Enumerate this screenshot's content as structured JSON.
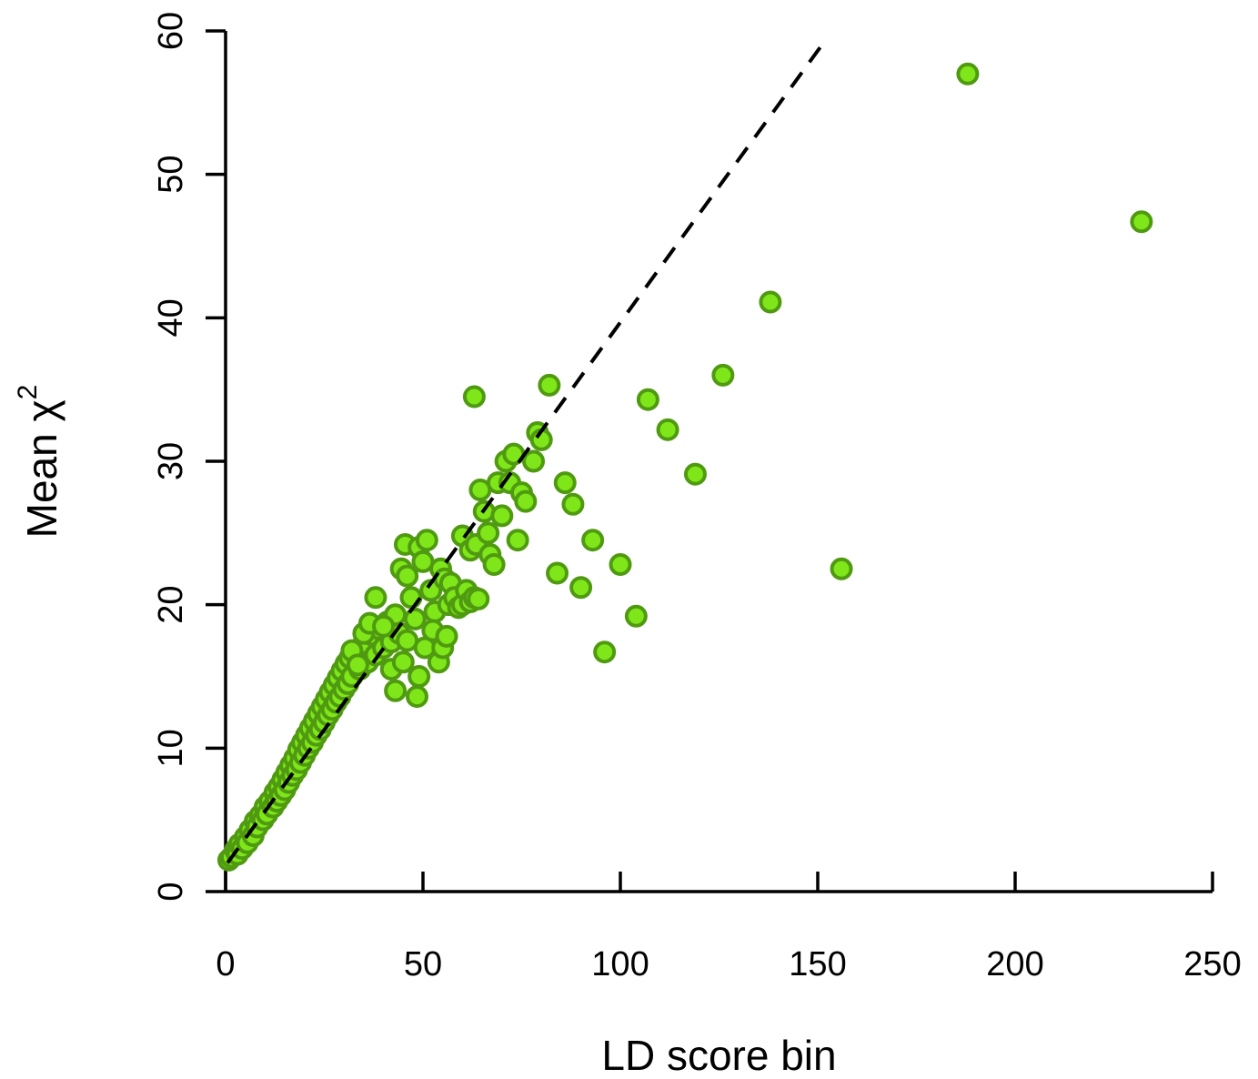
{
  "chart_data": {
    "type": "scatter",
    "title": "",
    "xlabel": "LD score bin",
    "ylabel_main": "Mean χ",
    "ylabel_superscript": "2",
    "xlim": [
      0,
      250
    ],
    "ylim": [
      0,
      60
    ],
    "xticks": [
      0,
      50,
      100,
      150,
      200,
      250
    ],
    "yticks": [
      0,
      10,
      20,
      30,
      40,
      50,
      60
    ],
    "xtick_labels": [
      "0",
      "50",
      "100",
      "150",
      "200",
      "250"
    ],
    "ytick_labels": [
      "0",
      "10",
      "20",
      "30",
      "40",
      "50",
      "60"
    ],
    "grid": false,
    "legend": "none",
    "point_fill": "#7fe61a",
    "point_stroke": "#4f9a10",
    "reference_line": {
      "style": "dashed",
      "color": "#000000",
      "x": [
        0.5,
        151
      ],
      "y": [
        2.0,
        59.0
      ]
    },
    "series": [
      {
        "values": [
          [
            0.8,
            2.2
          ],
          [
            1.5,
            2.4
          ],
          [
            2.5,
            2.9
          ],
          [
            3.0,
            2.6
          ],
          [
            3.5,
            3.3
          ],
          [
            4.2,
            3.0
          ],
          [
            5.0,
            3.8
          ],
          [
            5.5,
            3.4
          ],
          [
            6.2,
            4.3
          ],
          [
            7.0,
            3.9
          ],
          [
            7.5,
            4.9
          ],
          [
            8.0,
            4.5
          ],
          [
            8.8,
            5.3
          ],
          [
            9.5,
            5.0
          ],
          [
            10.0,
            5.9
          ],
          [
            10.5,
            5.4
          ],
          [
            11.2,
            6.3
          ],
          [
            12.0,
            5.9
          ],
          [
            12.5,
            6.9
          ],
          [
            13.0,
            6.3
          ],
          [
            13.5,
            7.3
          ],
          [
            14.0,
            6.7
          ],
          [
            14.5,
            7.8
          ],
          [
            15.0,
            7.1
          ],
          [
            15.5,
            8.3
          ],
          [
            16.0,
            7.6
          ],
          [
            16.5,
            8.8
          ],
          [
            17.0,
            8.1
          ],
          [
            17.5,
            9.3
          ],
          [
            18.0,
            8.5
          ],
          [
            18.5,
            9.9
          ],
          [
            19.0,
            9.0
          ],
          [
            19.5,
            10.4
          ],
          [
            20.0,
            9.5
          ],
          [
            20.5,
            10.9
          ],
          [
            21.0,
            10.0
          ],
          [
            21.5,
            11.4
          ],
          [
            22.0,
            10.4
          ],
          [
            22.5,
            11.9
          ],
          [
            23.0,
            10.9
          ],
          [
            23.5,
            12.4
          ],
          [
            24.0,
            11.3
          ],
          [
            24.5,
            12.9
          ],
          [
            25.0,
            11.8
          ],
          [
            25.5,
            13.4
          ],
          [
            26.0,
            12.3
          ],
          [
            26.5,
            13.9
          ],
          [
            27.0,
            12.7
          ],
          [
            27.5,
            14.4
          ],
          [
            28.0,
            13.2
          ],
          [
            28.5,
            14.9
          ],
          [
            29.0,
            13.6
          ],
          [
            29.5,
            15.4
          ],
          [
            30.0,
            14.1
          ],
          [
            30.5,
            15.9
          ],
          [
            31.0,
            14.5
          ],
          [
            31.5,
            16.3
          ],
          [
            32.0,
            15.0
          ],
          [
            33.0,
            16.8
          ],
          [
            34.0,
            15.5
          ],
          [
            35.0,
            17.3
          ],
          [
            36.0,
            16.0
          ],
          [
            37.0,
            17.9
          ],
          [
            38.0,
            16.5
          ],
          [
            39.0,
            18.3
          ],
          [
            40.0,
            17.0
          ],
          [
            41.0,
            18.8
          ],
          [
            42.0,
            17.4
          ],
          [
            43.0,
            19.3
          ],
          [
            44.0,
            18.0
          ],
          [
            32.0,
            16.8
          ],
          [
            33.5,
            15.8
          ],
          [
            35.0,
            18.0
          ],
          [
            36.5,
            18.7
          ],
          [
            38.0,
            20.5
          ],
          [
            40.0,
            18.5
          ],
          [
            42.0,
            15.5
          ],
          [
            43.0,
            14.0
          ],
          [
            45.0,
            16.0
          ],
          [
            46.0,
            17.5
          ],
          [
            44.5,
            22.5
          ],
          [
            45.5,
            24.2
          ],
          [
            46.0,
            22.0
          ],
          [
            47.0,
            20.5
          ],
          [
            48.0,
            19.0
          ],
          [
            49.0,
            24.0
          ],
          [
            50.0,
            23.0
          ],
          [
            51.0,
            24.5
          ],
          [
            52.0,
            21.0
          ],
          [
            53.0,
            19.5
          ],
          [
            48.5,
            13.6
          ],
          [
            49.0,
            15.0
          ],
          [
            50.5,
            17.0
          ],
          [
            52.5,
            18.2
          ],
          [
            54.0,
            16.0
          ],
          [
            55.0,
            17.0
          ],
          [
            56.0,
            17.8
          ],
          [
            54.5,
            22.5
          ],
          [
            55.5,
            21.8
          ],
          [
            56.5,
            20.0
          ],
          [
            57.0,
            21.5
          ],
          [
            58.0,
            20.5
          ],
          [
            59.0,
            19.8
          ],
          [
            60.0,
            20.0
          ],
          [
            61.0,
            21.0
          ],
          [
            62.0,
            20.2
          ],
          [
            63.0,
            20.5
          ],
          [
            64.0,
            20.4
          ],
          [
            60.0,
            24.8
          ],
          [
            62.0,
            23.8
          ],
          [
            63.5,
            24.2
          ],
          [
            64.5,
            28.0
          ],
          [
            65.5,
            26.5
          ],
          [
            66.5,
            25.0
          ],
          [
            67.0,
            23.5
          ],
          [
            68.0,
            22.8
          ],
          [
            69.0,
            28.5
          ],
          [
            70.0,
            26.2
          ],
          [
            71.0,
            30.0
          ],
          [
            72.0,
            28.5
          ],
          [
            73.0,
            30.5
          ],
          [
            74.0,
            24.5
          ],
          [
            75.0,
            27.8
          ],
          [
            76.0,
            27.2
          ],
          [
            78.0,
            30.0
          ],
          [
            79.0,
            32.0
          ],
          [
            80.0,
            31.5
          ],
          [
            63.0,
            34.5
          ],
          [
            82.0,
            35.3
          ],
          [
            84.0,
            22.2
          ],
          [
            86.0,
            28.5
          ],
          [
            88.0,
            27.0
          ],
          [
            90.0,
            21.2
          ],
          [
            93.0,
            24.5
          ],
          [
            96.0,
            16.7
          ],
          [
            100.0,
            22.8
          ],
          [
            104.0,
            19.2
          ],
          [
            107.0,
            34.3
          ],
          [
            112.0,
            32.2
          ],
          [
            119.0,
            29.1
          ],
          [
            126.0,
            36.0
          ],
          [
            138.0,
            41.1
          ],
          [
            156.0,
            22.5
          ],
          [
            188.0,
            57.0
          ],
          [
            232.0,
            46.7
          ]
        ]
      }
    ]
  }
}
